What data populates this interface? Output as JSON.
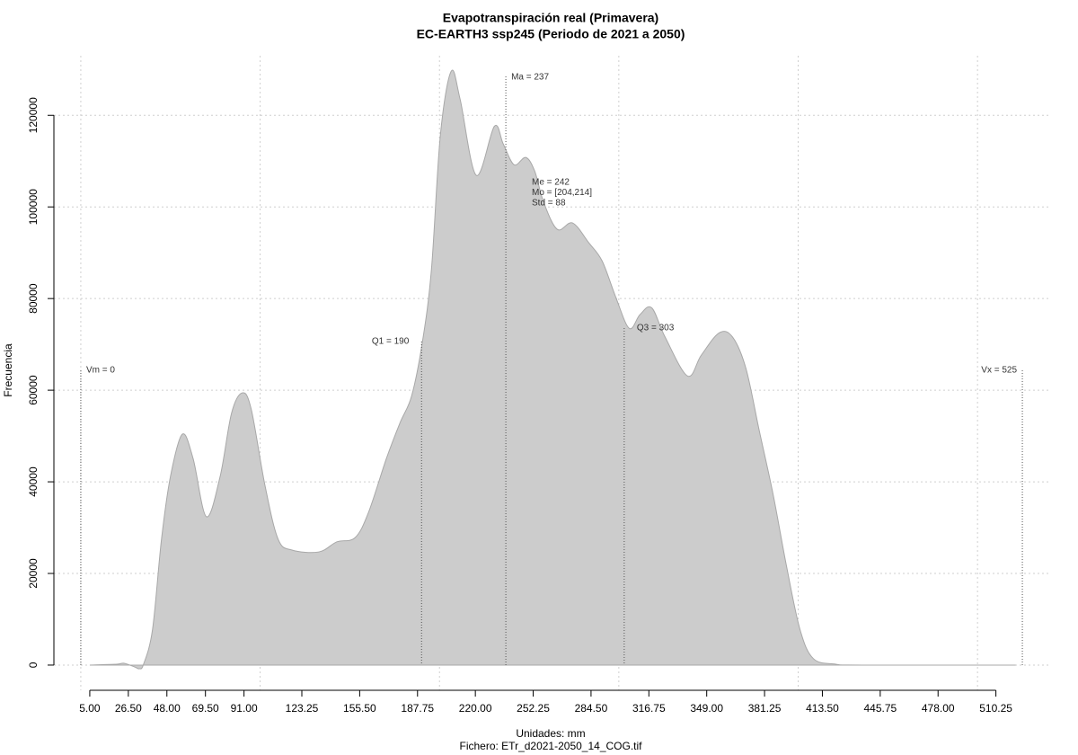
{
  "chart_data": {
    "type": "area",
    "title": "Evapotranspiración real (Primavera)",
    "subtitle": "EC-EARTH3 ssp245 (Periodo de 2021 a 2050)",
    "x_label": "Unidades: mm",
    "caption": "Fichero: ETr_d2021-2050_14_COG.tif",
    "y_label": "Frecuencia",
    "x": [
      5,
      20,
      24,
      30,
      32.6,
      35,
      40,
      45,
      50,
      56.6,
      62.6,
      70,
      77.7,
      84,
      90,
      95,
      102.7,
      110,
      117.8,
      132.8,
      142.8,
      152.9,
      160.4,
      170.4,
      178,
      184.5,
      190.5,
      195.5,
      200.5,
      206.5,
      211.5,
      220.5,
      230.6,
      235.6,
      241.6,
      248.1,
      253.1,
      258.1,
      265.7,
      274.2,
      283.2,
      290.7,
      298.2,
      305.8,
      311.8,
      318.3,
      325.8,
      338.3,
      345.9,
      355.9,
      363.4,
      370.9,
      378.4,
      386,
      393.5,
      401,
      408.5,
      421,
      436,
      521.3
    ],
    "values": [
      0,
      200,
      400,
      -400,
      -800,
      200,
      7800,
      27500,
      41200,
      50400,
      45100,
      32400,
      41200,
      54900,
      59400,
      55900,
      39200,
      27500,
      25100,
      24700,
      26900,
      27800,
      33300,
      45100,
      52900,
      58800,
      70600,
      86300,
      115700,
      129600,
      123500,
      106900,
      117600,
      113700,
      109200,
      110800,
      107800,
      101000,
      95100,
      96500,
      92200,
      88200,
      80400,
      73500,
      76500,
      78000,
      71600,
      63100,
      67600,
      72500,
      71600,
      64700,
      51000,
      37300,
      21600,
      7800,
      1400,
      200,
      0,
      0
    ],
    "color": "#cccccc",
    "line_color": "#a8a8a8",
    "xlim": [
      -15,
      541
    ],
    "ylim": [
      -5500,
      133000
    ],
    "xticks": [
      {
        "value": 5,
        "label": "5.00"
      },
      {
        "value": 26.5,
        "label": "26.50"
      },
      {
        "value": 48,
        "label": "48.00"
      },
      {
        "value": 69.5,
        "label": "69.50"
      },
      {
        "value": 91,
        "label": "91.00"
      },
      {
        "value": 123.25,
        "label": "123.25"
      },
      {
        "value": 155.5,
        "label": "155.50"
      },
      {
        "value": 187.75,
        "label": "187.75"
      },
      {
        "value": 220,
        "label": "220.00"
      },
      {
        "value": 252.25,
        "label": "252.25"
      },
      {
        "value": 284.5,
        "label": "284.50"
      },
      {
        "value": 316.75,
        "label": "316.75"
      },
      {
        "value": 349,
        "label": "349.00"
      },
      {
        "value": 381.25,
        "label": "381.25"
      },
      {
        "value": 413.5,
        "label": "413.50"
      },
      {
        "value": 445.75,
        "label": "445.75"
      },
      {
        "value": 478,
        "label": "478.00"
      },
      {
        "value": 510.25,
        "label": "510.25"
      }
    ],
    "yticks": [
      0,
      20000,
      40000,
      60000,
      80000,
      100000,
      120000
    ],
    "xgrid": [
      0,
      100,
      200,
      300,
      400,
      500
    ],
    "grid": true,
    "annotations": [
      {
        "text": "Vm = 0",
        "x": 0
      },
      {
        "text": "Q1 = 190",
        "x": 190
      },
      {
        "text": "Ma = 237",
        "x": 237
      },
      {
        "text": "Q3 = 303",
        "x": 303
      },
      {
        "text": "Vx = 525",
        "x": 525
      }
    ],
    "stats": [
      "Me = 242",
      "Mo = [204,214]",
      "Std = 88"
    ]
  }
}
